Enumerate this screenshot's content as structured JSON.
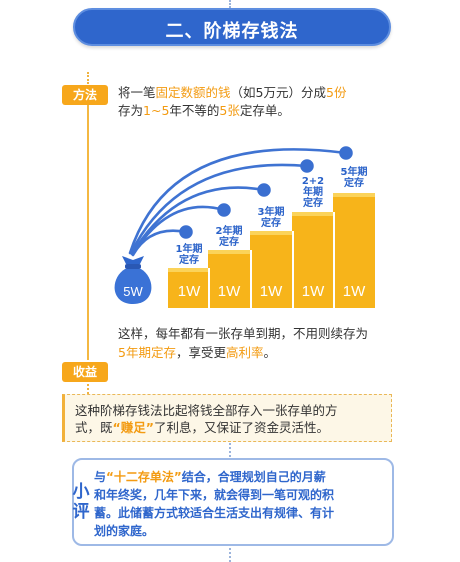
{
  "header": {
    "title": "二、阶梯存钱法"
  },
  "method": {
    "badge": "方法",
    "line1": [
      "将一笔",
      "固定数额的钱",
      "（如5万元）分成",
      "5份"
    ],
    "line2": [
      "存为",
      "1~5",
      "年不等的",
      "5张",
      "定存单。"
    ]
  },
  "diagram": {
    "bag_label": "5W",
    "bars": [
      {
        "amount": "1W",
        "term": [
          "1年期",
          "定存"
        ],
        "level": 1
      },
      {
        "amount": "1W",
        "term": [
          "2年期",
          "定存"
        ],
        "level": 2
      },
      {
        "amount": "1W",
        "term": [
          "3年期",
          "定存"
        ],
        "level": 3
      },
      {
        "amount": "1W",
        "term": [
          "2+2",
          "年期",
          "定存"
        ],
        "level": 4
      },
      {
        "amount": "1W",
        "term": [
          "5年期",
          "定存"
        ],
        "level": 5
      }
    ]
  },
  "summary": {
    "line1": "这样，每年都有一张存单到期，不用则续存为",
    "line2": [
      "5年期定存",
      "，享受更",
      "高利率",
      "。"
    ]
  },
  "benefit": {
    "badge": "收益",
    "line1": "这种阶梯存钱法比起将钱全部存入一张存单的方",
    "line2": [
      "式，既",
      "“赚足”",
      "了利息，又保证了资金灵活性。"
    ]
  },
  "review": {
    "badge": [
      "小",
      "评"
    ],
    "line1": [
      "与",
      "“十二存单法”",
      "结合，合理规划自己的月薪"
    ],
    "line2": "和年终奖，几年下来，就会得到一笔可观的积",
    "line3": "蓄。此储蓄方式较适合生活支出有规律、有计",
    "line4": "划的家庭。"
  }
}
